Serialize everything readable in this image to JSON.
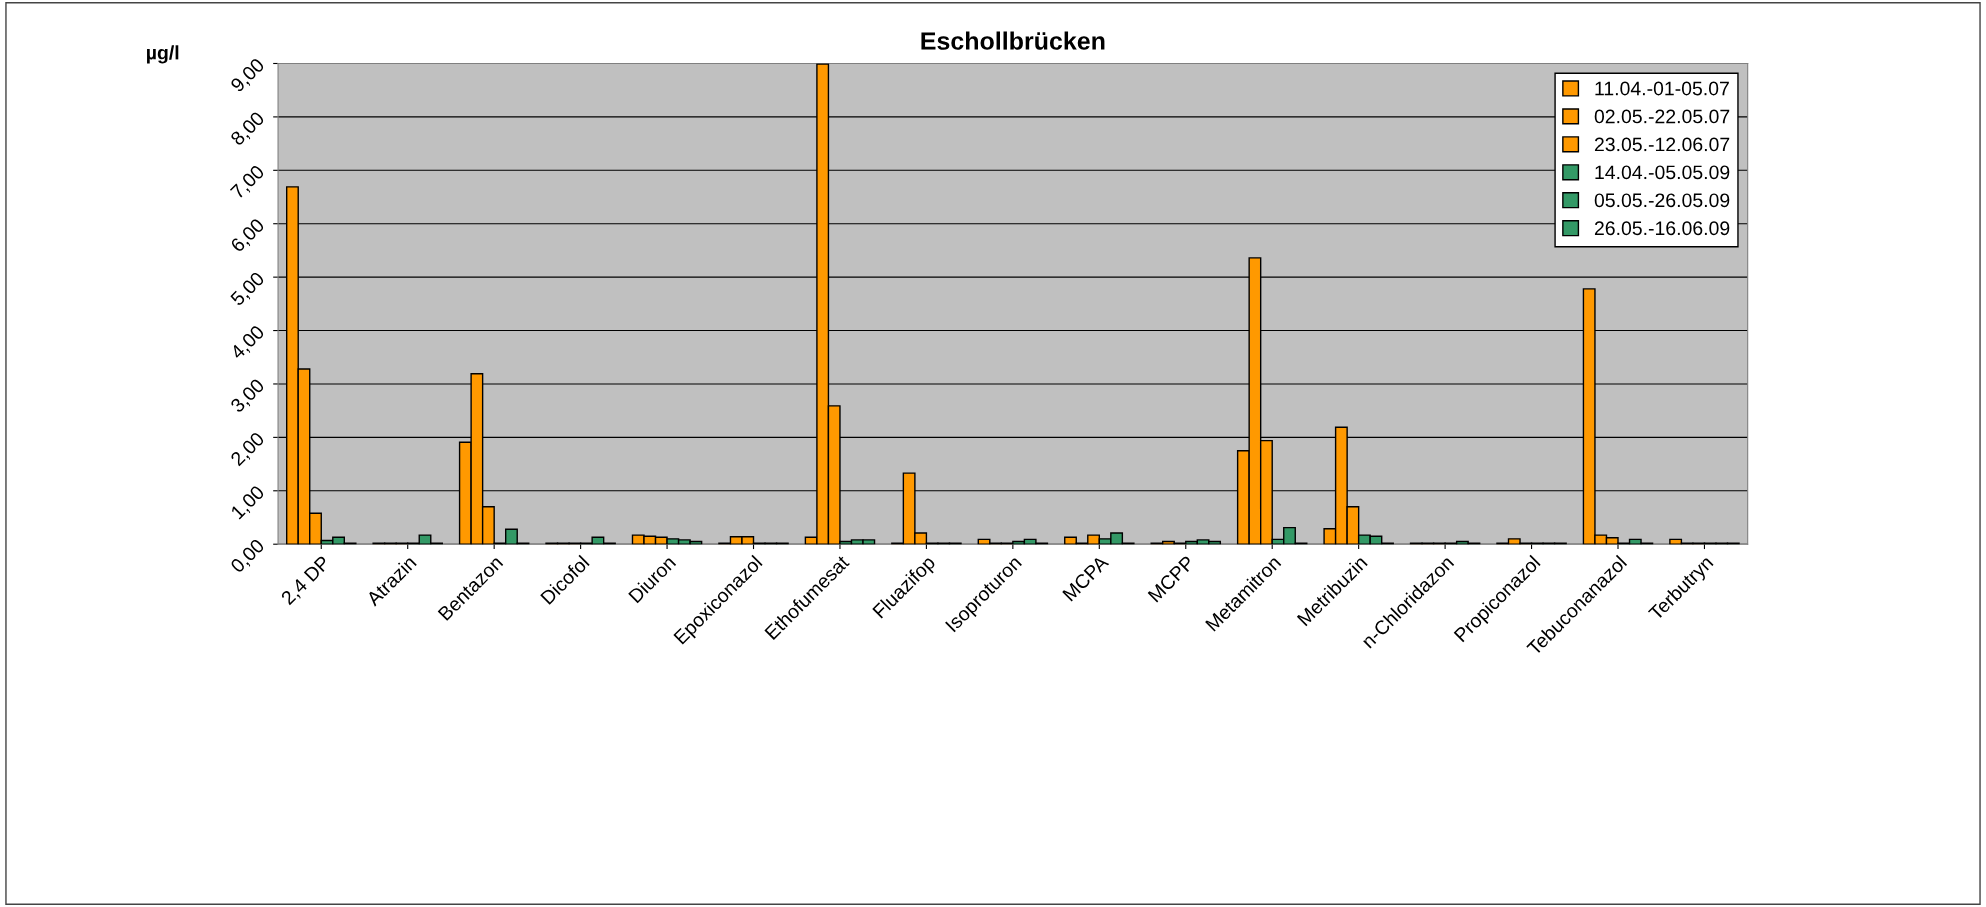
{
  "chart_data": {
    "type": "bar",
    "title": "Eschollbrücken",
    "ylabel": "µg/l",
    "categories": [
      "2,4 DP",
      "Atrazin",
      "Bentazon",
      "Dicofol",
      "Diuron",
      "Epoxiconazol",
      "Ethofumesat",
      "Fluazifop",
      "Isoproturon",
      "MCPA",
      "MCPP",
      "Metamitron",
      "Metribuzin",
      "n-Chloridazon",
      "Propiconazol",
      "Tebuconanazol",
      "Terbutryn"
    ],
    "series": [
      {
        "name": "11.04.-01-05.07",
        "color": "#ff9900",
        "values": [
          6.69,
          0.02,
          1.91,
          0.02,
          0.17,
          0.02,
          0.13,
          0.02,
          0.09,
          0.13,
          0.02,
          1.75,
          0.29,
          0.02,
          0.02,
          4.78,
          0.09
        ]
      },
      {
        "name": "02.05.-22.05.07",
        "color": "#ff9900",
        "values": [
          3.28,
          0.02,
          3.19,
          0.02,
          0.15,
          0.14,
          8.99,
          1.33,
          0.02,
          0.02,
          0.05,
          5.36,
          2.19,
          0.02,
          0.1,
          0.17,
          0.02
        ]
      },
      {
        "name": "23.05.-12.06.07",
        "color": "#ff9900",
        "values": [
          0.58,
          0.02,
          0.7,
          0.02,
          0.13,
          0.14,
          2.59,
          0.21,
          0.02,
          0.17,
          0.02,
          1.94,
          0.7,
          0.02,
          0.02,
          0.12,
          0.02
        ]
      },
      {
        "name": "14.04.-05.05.09",
        "color": "#339966",
        "values": [
          0.07,
          0.02,
          0.02,
          0.02,
          0.1,
          0.02,
          0.05,
          0.02,
          0.05,
          0.1,
          0.05,
          0.09,
          0.17,
          0.02,
          0.02,
          0.02,
          0.02
        ]
      },
      {
        "name": "05.05.-26.05.09",
        "color": "#339966",
        "values": [
          0.13,
          0.17,
          0.28,
          0.13,
          0.08,
          0.02,
          0.08,
          0.02,
          0.09,
          0.21,
          0.08,
          0.31,
          0.15,
          0.05,
          0.02,
          0.09,
          0.02
        ]
      },
      {
        "name": "26.05.-16.06.09",
        "color": "#339966",
        "values": [
          0.02,
          0.02,
          0.02,
          0.02,
          0.05,
          0.02,
          0.08,
          0.02,
          0.02,
          0.02,
          0.05,
          0.02,
          0.02,
          0.02,
          0.02,
          0.02,
          0.02
        ]
      }
    ],
    "ylim": [
      0,
      9
    ],
    "yticks": [
      {
        "value": 0,
        "label": "0,00"
      },
      {
        "value": 1,
        "label": "1,00"
      },
      {
        "value": 2,
        "label": "2,00"
      },
      {
        "value": 3,
        "label": "3,00"
      },
      {
        "value": 4,
        "label": "4,00"
      },
      {
        "value": 5,
        "label": "5,00"
      },
      {
        "value": 6,
        "label": "6,00"
      },
      {
        "value": 7,
        "label": "7,00"
      },
      {
        "value": 8,
        "label": "8,00"
      },
      {
        "value": 9,
        "label": "9,00"
      }
    ],
    "grid": "y",
    "legend": "top right"
  }
}
